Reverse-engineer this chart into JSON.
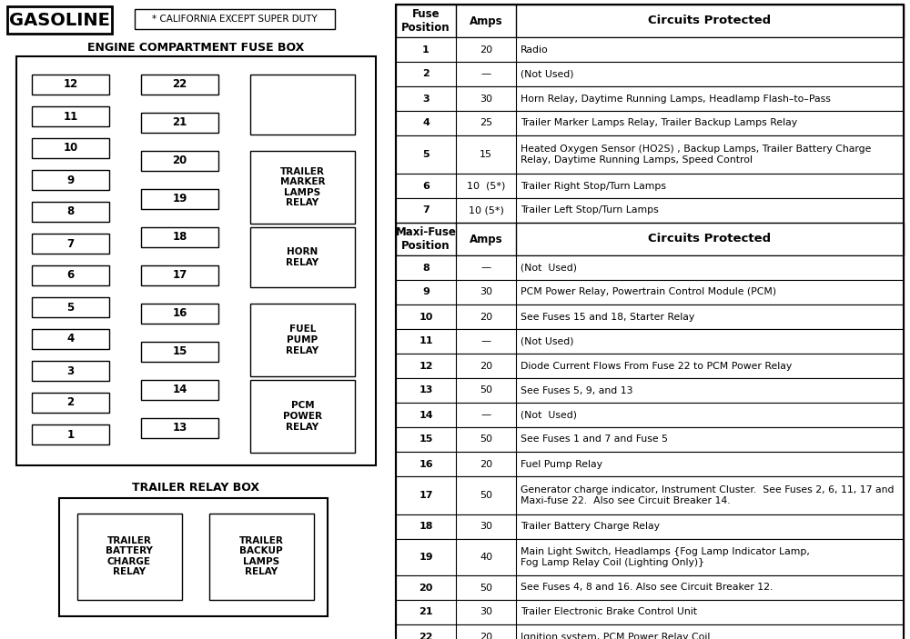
{
  "title_gasoline": "GASOLINE",
  "title_california": "* CALIFORNIA EXCEPT SUPER DUTY",
  "title_engine": "ENGINE COMPARTMENT FUSE BOX",
  "title_trailer": "TRAILER RELAY BOX",
  "fuse_col1": [
    12,
    11,
    10,
    9,
    8,
    7,
    6,
    5,
    4,
    3,
    2,
    1
  ],
  "fuse_col2": [
    22,
    21,
    20,
    19,
    18,
    17,
    16,
    15,
    14,
    13
  ],
  "trailer_relay_boxes": [
    "TRAILER\nBATTERY\nCHARGE\nRELAY",
    "TRAILER\nBACKUP\nLAMPS\nRELAY"
  ],
  "table_data": [
    [
      "1",
      "20",
      "Radio"
    ],
    [
      "2",
      "—",
      "(Not Used)"
    ],
    [
      "3",
      "30",
      "Horn Relay, Daytime Running Lamps, Headlamp Flash–to–Pass"
    ],
    [
      "4",
      "25",
      "Trailer Marker Lamps Relay, Trailer Backup Lamps Relay"
    ],
    [
      "5",
      "15",
      "Heated Oxygen Sensor (HO2S) , Backup Lamps, Trailer Battery Charge\nRelay, Daytime Running Lamps, Speed Control"
    ],
    [
      "6",
      "10  (5*)",
      "Trailer Right Stop/Turn Lamps"
    ],
    [
      "7",
      "10 (5*)",
      "Trailer Left Stop/Turn Lamps"
    ]
  ],
  "maxi_data": [
    [
      "8",
      "—",
      "(Not  Used)"
    ],
    [
      "9",
      "30",
      "PCM Power Relay, Powertrain Control Module (PCM)"
    ],
    [
      "10",
      "20",
      "See Fuses 15 and 18, Starter Relay"
    ],
    [
      "11",
      "—",
      "(Not Used)"
    ],
    [
      "12",
      "20",
      "Diode Current Flows From Fuse 22 to PCM Power Relay"
    ],
    [
      "13",
      "50",
      "See Fuses 5, 9, and 13"
    ],
    [
      "14",
      "—",
      "(Not  Used)"
    ],
    [
      "15",
      "50",
      "See Fuses 1 and 7 and Fuse 5"
    ],
    [
      "16",
      "20",
      "Fuel Pump Relay"
    ],
    [
      "17",
      "50",
      "Generator charge indicator, Instrument Cluster.  See Fuses 2, 6, 11, 17 and\nMaxi-fuse 22.  Also see Circuit Breaker 14."
    ],
    [
      "18",
      "30",
      "Trailer Battery Charge Relay"
    ],
    [
      "19",
      "40",
      "Main Light Switch, Headlamps {Fog Lamp Indicator Lamp,\nFog Lamp Relay Coil (Lighting Only)}"
    ],
    [
      "20",
      "50",
      "See Fuses 4, 8 and 16. Also see Circuit Breaker 12."
    ],
    [
      "21",
      "30",
      "Trailer Electronic Brake Control Unit"
    ],
    [
      "22",
      "20",
      "Ignition system, PCM Power Relay Coil"
    ]
  ],
  "bg_color": "#ffffff"
}
